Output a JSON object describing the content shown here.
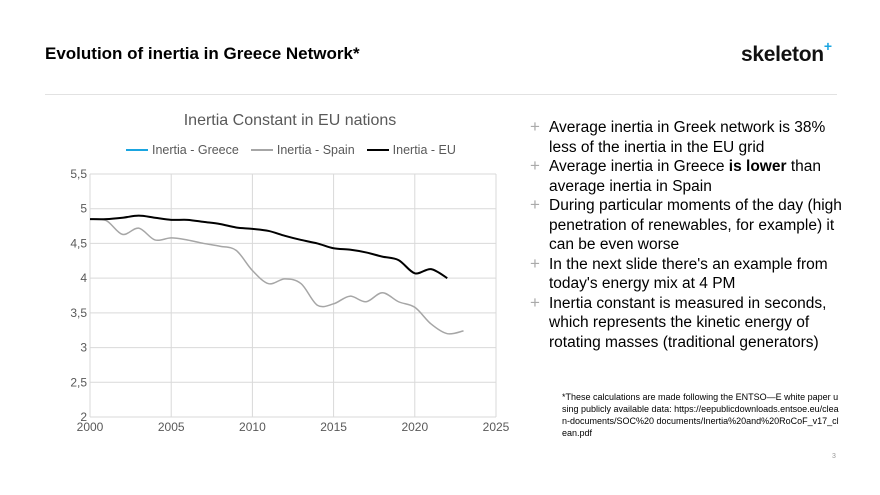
{
  "header": {
    "title": "Evolution of inertia in Greece Network*",
    "logo_text": "skeleton",
    "logo_plus": "+"
  },
  "chart_data": {
    "type": "line",
    "title": "Inertia Constant in EU nations",
    "xlabel": "",
    "ylabel": "",
    "xlim": [
      2000,
      2025
    ],
    "ylim": [
      2,
      5.5
    ],
    "xticks": [
      "2000",
      "2005",
      "2010",
      "2015",
      "2020",
      "2025"
    ],
    "yticks": [
      "2",
      "2,5",
      "3",
      "3,5",
      "4",
      "4,5",
      "5",
      "5,5"
    ],
    "grid": true,
    "legend_position": "top",
    "series": [
      {
        "name": "Inertia - Greece",
        "color": "#1aa5e0",
        "x": [],
        "values": []
      },
      {
        "name": "Inertia - Spain",
        "color": "#a6a6a6",
        "x": [
          2000,
          2001,
          2002,
          2003,
          2004,
          2005,
          2006,
          2007,
          2008,
          2009,
          2010,
          2011,
          2012,
          2013,
          2014,
          2015,
          2016,
          2017,
          2018,
          2019,
          2020,
          2021,
          2022,
          2023
        ],
        "values": [
          4.85,
          4.83,
          4.63,
          4.72,
          4.55,
          4.58,
          4.55,
          4.5,
          4.46,
          4.4,
          4.11,
          3.92,
          3.99,
          3.92,
          3.61,
          3.63,
          3.74,
          3.66,
          3.79,
          3.66,
          3.58,
          3.34,
          3.2,
          3.24
        ]
      },
      {
        "name": "Inertia - EU",
        "color": "#000000",
        "x": [
          2000,
          2001,
          2002,
          2003,
          2004,
          2005,
          2006,
          2007,
          2008,
          2009,
          2010,
          2011,
          2012,
          2013,
          2014,
          2015,
          2016,
          2017,
          2018,
          2019,
          2020,
          2021,
          2022
        ],
        "values": [
          4.85,
          4.85,
          4.87,
          4.9,
          4.87,
          4.84,
          4.84,
          4.81,
          4.78,
          4.73,
          4.71,
          4.68,
          4.61,
          4.55,
          4.5,
          4.43,
          4.41,
          4.37,
          4.31,
          4.26,
          4.07,
          4.13,
          4.0
        ]
      }
    ]
  },
  "bullets": [
    {
      "text": "Average inertia in Greek network is 38% less of the inertia in the EU grid"
    },
    {
      "pre": "Average inertia in Greece ",
      "bold": "is lower",
      "post": " than average inertia in Spain"
    },
    {
      "text": "During particular moments of the day (high penetration of renewables, for example) it can be even worse"
    },
    {
      "text": "In the next slide there's an example from today's energy mix at 4 PM"
    },
    {
      "text": "Inertia constant is measured in seconds, which represents the kinetic energy of rotating masses (traditional generators)"
    }
  ],
  "footnote": "*These calculations are made following the ENTSO—E white paper using publicly available data: https://eepublicdownloads.entsoe.eu/clean-documents/SOC%20 documents/Inertia%20and%20RoCoF_v17_clean.pdf",
  "page_number": "3"
}
